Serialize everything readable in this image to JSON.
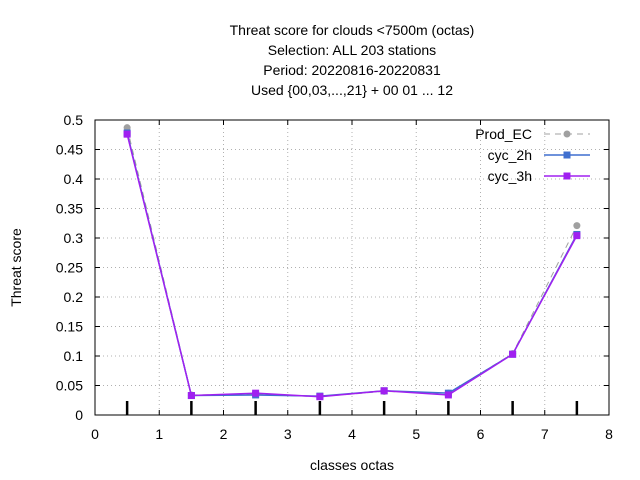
{
  "chart_data": {
    "type": "line",
    "title_lines": [
      "Threat score  for clouds <7500m (octas)",
      "Selection: ALL    203 stations",
      "Period: 20220816-20220831",
      "Used {00,03,...,21} + 00 01 ... 12"
    ],
    "xlabel": "classes octas",
    "ylabel": "Threat score",
    "xlim": [
      0,
      8
    ],
    "ylim": [
      0,
      0.5
    ],
    "x_ticks": [
      "0",
      "1",
      "2",
      "3",
      "4",
      "5",
      "6",
      "7",
      "8"
    ],
    "y_ticks": [
      "0",
      "0.05",
      "0.1",
      "0.15",
      "0.2",
      "0.25",
      "0.3",
      "0.35",
      "0.4",
      "0.45",
      "0.5"
    ],
    "grid": true,
    "legend_position": "top-right",
    "x": [
      0.5,
      1.5,
      2.5,
      3.5,
      4.5,
      5.5,
      6.5,
      7.5
    ],
    "series": [
      {
        "name": "Prod_EC",
        "color": "#a0a0a0",
        "dashed": true,
        "marker": "circle",
        "values": [
          0.487,
          0.034,
          0.035,
          0.031,
          0.04,
          0.037,
          0.104,
          0.321
        ]
      },
      {
        "name": "cyc_2h",
        "color": "#3f6fcf",
        "dashed": false,
        "marker": "square",
        "values": [
          0.478,
          0.033,
          0.034,
          0.032,
          0.041,
          0.037,
          0.103,
          0.306
        ]
      },
      {
        "name": "cyc_3h",
        "color": "#a020f0",
        "dashed": false,
        "marker": "square",
        "values": [
          0.476,
          0.033,
          0.037,
          0.031,
          0.041,
          0.034,
          0.103,
          0.304
        ]
      }
    ],
    "x_tick_marks_at_data": true
  }
}
